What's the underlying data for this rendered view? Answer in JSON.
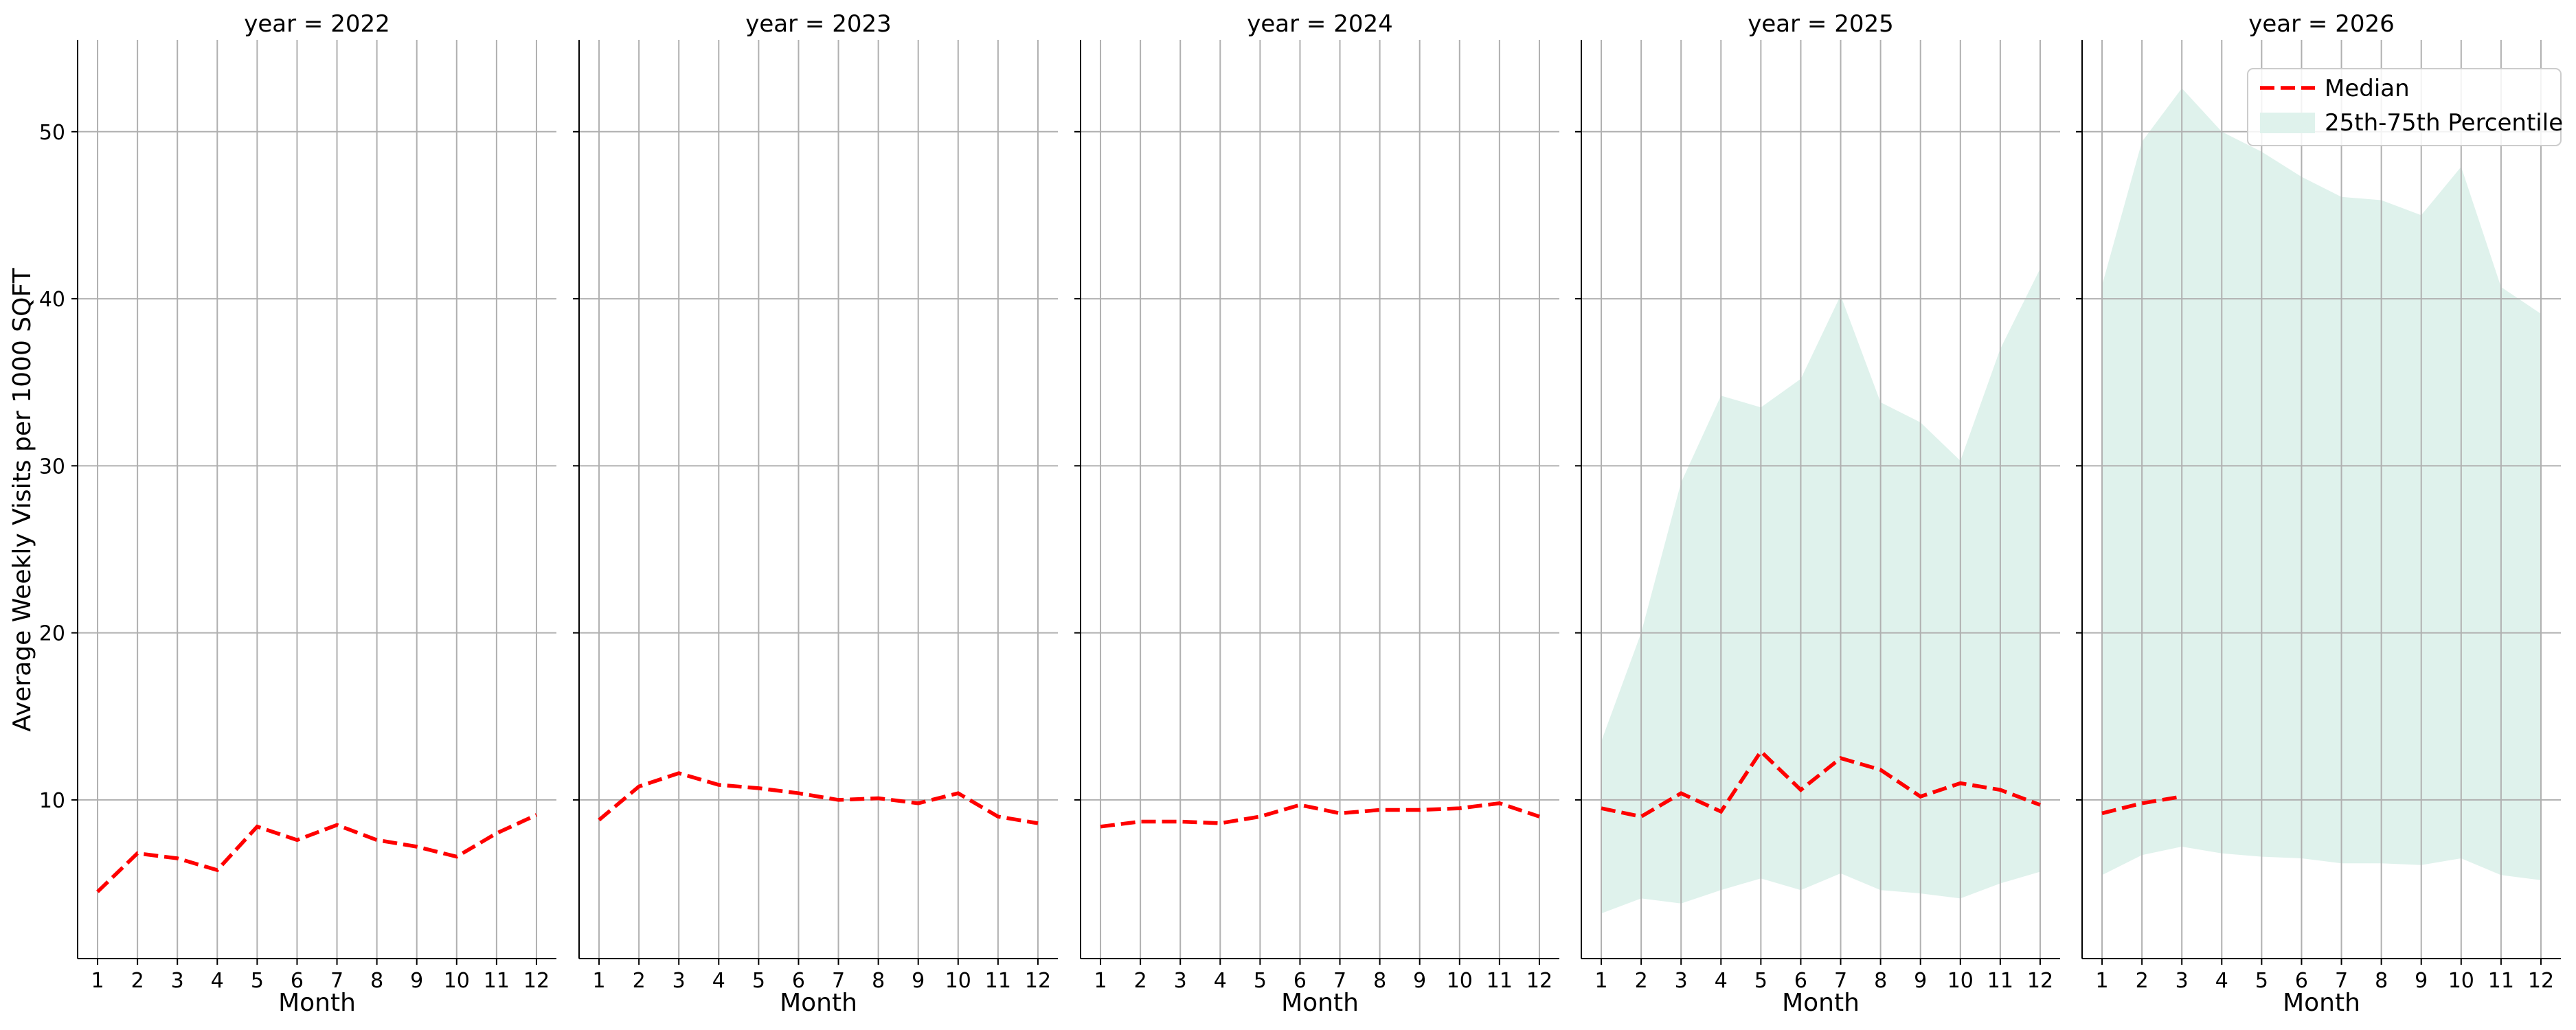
{
  "ylabel": "Average Weekly Visits per 1000 SQFT",
  "xlabel": "Month",
  "x_ticks": [
    1,
    2,
    3,
    4,
    5,
    6,
    7,
    8,
    9,
    10,
    11,
    12
  ],
  "y_ticks": [
    10,
    20,
    30,
    40,
    50
  ],
  "ylim": [
    0.5,
    55.5
  ],
  "xlim": [
    0.5,
    12.5
  ],
  "legend": {
    "median": "Median",
    "band": "25th-75th Percentile"
  },
  "colors": {
    "median": "#ff0000",
    "band": "#dff2ec",
    "grid": "#b0b0b0",
    "axis": "#000000"
  },
  "chart_data": [
    {
      "type": "line",
      "title": "year = 2022",
      "x": [
        1,
        2,
        3,
        4,
        5,
        6,
        7,
        8,
        9,
        10,
        11,
        12
      ],
      "series": [
        {
          "name": "Median",
          "values": [
            4.5,
            6.8,
            6.5,
            5.8,
            8.4,
            7.6,
            8.5,
            7.6,
            7.2,
            6.6,
            8.0,
            9.1
          ]
        }
      ],
      "band": {
        "name": "25th-75th Percentile",
        "x": [],
        "lower": [],
        "upper": []
      }
    },
    {
      "type": "line",
      "title": "year = 2023",
      "x": [
        1,
        2,
        3,
        4,
        5,
        6,
        7,
        8,
        9,
        10,
        11,
        12
      ],
      "series": [
        {
          "name": "Median",
          "values": [
            8.8,
            10.8,
            11.6,
            10.9,
            10.7,
            10.4,
            10.0,
            10.1,
            9.8,
            10.4,
            9.0,
            8.6
          ]
        }
      ],
      "band": {
        "name": "25th-75th Percentile",
        "x": [],
        "lower": [],
        "upper": []
      }
    },
    {
      "type": "line",
      "title": "year = 2024",
      "x": [
        1,
        2,
        3,
        4,
        5,
        6,
        7,
        8,
        9,
        10,
        11,
        12
      ],
      "series": [
        {
          "name": "Median",
          "values": [
            8.4,
            8.7,
            8.7,
            8.6,
            9.0,
            9.7,
            9.2,
            9.4,
            9.4,
            9.5,
            9.8,
            9.0
          ]
        }
      ],
      "band": {
        "name": "25th-75th Percentile",
        "x": [],
        "lower": [],
        "upper": []
      }
    },
    {
      "type": "area",
      "title": "year = 2025",
      "x": [
        1,
        2,
        3,
        4,
        5,
        6,
        7,
        8,
        9,
        10,
        11,
        12
      ],
      "series": [
        {
          "name": "Median",
          "values": [
            9.5,
            9.0,
            10.4,
            9.3,
            12.9,
            10.6,
            12.5,
            11.8,
            10.2,
            11.0,
            10.6,
            9.7
          ]
        }
      ],
      "band": {
        "name": "25th-75th Percentile",
        "x": [
          1,
          2,
          3,
          4,
          5,
          6,
          7,
          8,
          9,
          10,
          11,
          12
        ],
        "lower": [
          3.2,
          4.1,
          3.8,
          4.6,
          5.3,
          4.6,
          5.6,
          4.6,
          4.4,
          4.1,
          5.0,
          5.7
        ],
        "upper": [
          13.5,
          20.0,
          29.0,
          34.2,
          33.5,
          35.2,
          40.2,
          33.8,
          32.6,
          30.3,
          37.0,
          41.8
        ]
      }
    },
    {
      "type": "area",
      "title": "year = 2026",
      "x": [
        1,
        2,
        3,
        4,
        5,
        6,
        7,
        8,
        9,
        10,
        11,
        12
      ],
      "series": [
        {
          "name": "Median",
          "x": [
            1,
            2,
            3
          ],
          "values": [
            9.2,
            9.8,
            10.2
          ]
        }
      ],
      "band": {
        "name": "25th-75th Percentile",
        "x": [
          1,
          2,
          3,
          4,
          5,
          6,
          7,
          8,
          9,
          10,
          11,
          12
        ],
        "lower": [
          5.5,
          6.7,
          7.2,
          6.8,
          6.6,
          6.5,
          6.2,
          6.2,
          6.1,
          6.5,
          5.5,
          5.2
        ],
        "upper": [
          40.8,
          49.4,
          52.6,
          50.0,
          48.8,
          47.3,
          46.1,
          45.9,
          45.0,
          47.9,
          40.7,
          39.1
        ]
      }
    }
  ]
}
